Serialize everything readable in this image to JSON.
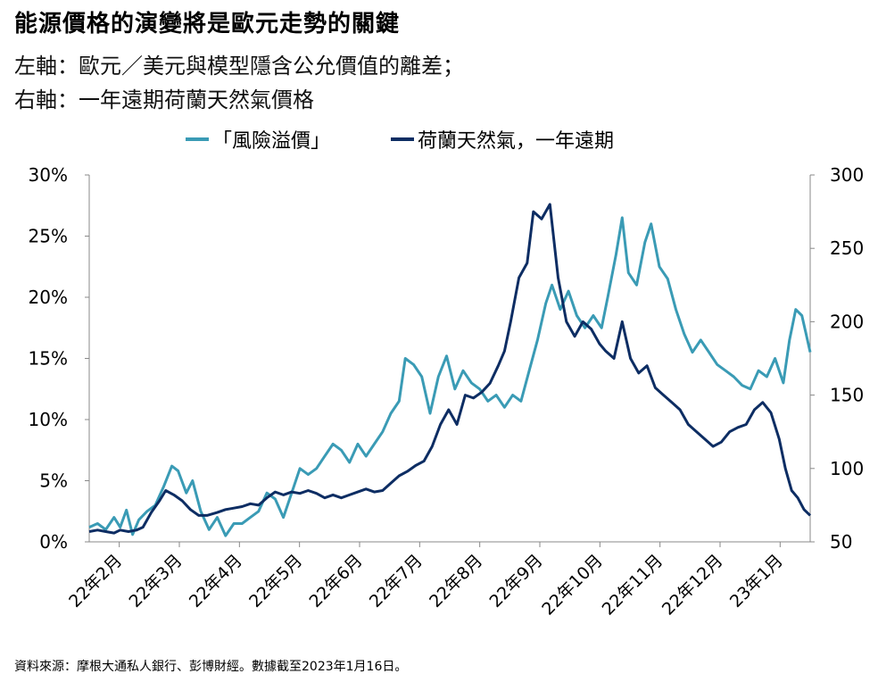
{
  "title": "能源價格的演變將是歐元走勢的關鍵",
  "subtitle_lines": [
    "左軸：歐元／美元與模型隱含公允價值的離差；",
    "右軸：一年遠期荷蘭天然氣價格"
  ],
  "source": "資料來源：摩根大通私人銀行、彭博財經。數據截至2023年1月16日。",
  "colors": {
    "premium": "#3a9bb5",
    "gas": "#0d2d63",
    "axis": "#888888"
  },
  "chart_data": {
    "type": "line",
    "x_start": "2022-02-01",
    "x_end": "2023-01-16",
    "x_ticks": [
      "22年2月",
      "22年3月",
      "22年4月",
      "22年5月",
      "22年6月",
      "22年7月",
      "22年8月",
      "22年9月",
      "22年10月",
      "22年11月",
      "22年12月",
      "23年1月"
    ],
    "y_left": {
      "min": 0,
      "max": 30,
      "ticks": [
        "0%",
        "5%",
        "10%",
        "15%",
        "20%",
        "25%",
        "30%"
      ]
    },
    "y_right": {
      "min": 50,
      "max": 300,
      "ticks": [
        "50",
        "100",
        "150",
        "200",
        "250",
        "300"
      ]
    },
    "series": [
      {
        "name": "「風險溢價」",
        "axis": "left",
        "points": [
          [
            "2022-02-01",
            1.2
          ],
          [
            "2022-02-05",
            1.5
          ],
          [
            "2022-02-09",
            1.0
          ],
          [
            "2022-02-13",
            2.0
          ],
          [
            "2022-02-16",
            1.2
          ],
          [
            "2022-02-19",
            2.6
          ],
          [
            "2022-02-22",
            0.6
          ],
          [
            "2022-02-25",
            1.8
          ],
          [
            "2022-03-01",
            2.5
          ],
          [
            "2022-03-05",
            3.0
          ],
          [
            "2022-03-09",
            4.5
          ],
          [
            "2022-03-13",
            6.2
          ],
          [
            "2022-03-16",
            5.8
          ],
          [
            "2022-03-20",
            4.0
          ],
          [
            "2022-03-23",
            5.0
          ],
          [
            "2022-03-27",
            2.5
          ],
          [
            "2022-03-31",
            1.0
          ],
          [
            "2022-04-04",
            2.0
          ],
          [
            "2022-04-08",
            0.5
          ],
          [
            "2022-04-12",
            1.5
          ],
          [
            "2022-04-16",
            1.5
          ],
          [
            "2022-04-20",
            2.0
          ],
          [
            "2022-04-24",
            2.5
          ],
          [
            "2022-04-28",
            4.0
          ],
          [
            "2022-05-02",
            3.5
          ],
          [
            "2022-05-06",
            2.0
          ],
          [
            "2022-05-10",
            4.0
          ],
          [
            "2022-05-14",
            6.0
          ],
          [
            "2022-05-18",
            5.5
          ],
          [
            "2022-05-22",
            6.0
          ],
          [
            "2022-05-26",
            7.0
          ],
          [
            "2022-05-30",
            8.0
          ],
          [
            "2022-06-03",
            7.5
          ],
          [
            "2022-06-07",
            6.5
          ],
          [
            "2022-06-11",
            8.0
          ],
          [
            "2022-06-15",
            7.0
          ],
          [
            "2022-06-19",
            8.0
          ],
          [
            "2022-06-23",
            9.0
          ],
          [
            "2022-06-27",
            10.5
          ],
          [
            "2022-07-01",
            11.5
          ],
          [
            "2022-07-04",
            15.0
          ],
          [
            "2022-07-08",
            14.5
          ],
          [
            "2022-07-12",
            13.5
          ],
          [
            "2022-07-16",
            10.5
          ],
          [
            "2022-07-20",
            13.5
          ],
          [
            "2022-07-24",
            15.2
          ],
          [
            "2022-07-28",
            12.5
          ],
          [
            "2022-08-01",
            14.0
          ],
          [
            "2022-08-05",
            13.0
          ],
          [
            "2022-08-09",
            12.5
          ],
          [
            "2022-08-13",
            11.5
          ],
          [
            "2022-08-17",
            12.0
          ],
          [
            "2022-08-21",
            11.0
          ],
          [
            "2022-08-25",
            12.0
          ],
          [
            "2022-08-29",
            11.5
          ],
          [
            "2022-09-02",
            14.0
          ],
          [
            "2022-09-06",
            16.5
          ],
          [
            "2022-09-10",
            19.5
          ],
          [
            "2022-09-13",
            21.0
          ],
          [
            "2022-09-17",
            19.0
          ],
          [
            "2022-09-21",
            20.5
          ],
          [
            "2022-09-25",
            18.5
          ],
          [
            "2022-09-29",
            17.5
          ],
          [
            "2022-10-03",
            18.5
          ],
          [
            "2022-10-07",
            17.5
          ],
          [
            "2022-10-10",
            20.0
          ],
          [
            "2022-10-14",
            23.5
          ],
          [
            "2022-10-17",
            26.5
          ],
          [
            "2022-10-20",
            22.0
          ],
          [
            "2022-10-24",
            21.0
          ],
          [
            "2022-10-28",
            24.5
          ],
          [
            "2022-10-31",
            26.0
          ],
          [
            "2022-11-04",
            22.5
          ],
          [
            "2022-11-08",
            21.5
          ],
          [
            "2022-11-12",
            19.0
          ],
          [
            "2022-11-16",
            17.0
          ],
          [
            "2022-11-20",
            15.5
          ],
          [
            "2022-11-24",
            16.5
          ],
          [
            "2022-11-28",
            15.5
          ],
          [
            "2022-12-02",
            14.5
          ],
          [
            "2022-12-06",
            14.0
          ],
          [
            "2022-12-10",
            13.5
          ],
          [
            "2022-12-14",
            12.8
          ],
          [
            "2022-12-18",
            12.5
          ],
          [
            "2022-12-22",
            14.0
          ],
          [
            "2022-12-26",
            13.5
          ],
          [
            "2022-12-30",
            15.0
          ],
          [
            "2023-01-03",
            13.0
          ],
          [
            "2023-01-06",
            16.5
          ],
          [
            "2023-01-09",
            19.0
          ],
          [
            "2023-01-12",
            18.5
          ],
          [
            "2023-01-14",
            17.0
          ],
          [
            "2023-01-16",
            15.5
          ]
        ]
      },
      {
        "name": "荷蘭天然氣，一年遠期",
        "axis": "right",
        "points": [
          [
            "2022-02-01",
            57
          ],
          [
            "2022-02-05",
            58
          ],
          [
            "2022-02-09",
            57
          ],
          [
            "2022-02-13",
            56
          ],
          [
            "2022-02-16",
            58
          ],
          [
            "2022-02-20",
            57
          ],
          [
            "2022-02-24",
            58
          ],
          [
            "2022-02-27",
            60
          ],
          [
            "2022-03-03",
            70
          ],
          [
            "2022-03-07",
            78
          ],
          [
            "2022-03-10",
            85
          ],
          [
            "2022-03-14",
            82
          ],
          [
            "2022-03-18",
            78
          ],
          [
            "2022-03-22",
            72
          ],
          [
            "2022-03-26",
            68
          ],
          [
            "2022-03-30",
            68
          ],
          [
            "2022-04-04",
            70
          ],
          [
            "2022-04-08",
            72
          ],
          [
            "2022-04-12",
            73
          ],
          [
            "2022-04-16",
            74
          ],
          [
            "2022-04-20",
            76
          ],
          [
            "2022-04-24",
            75
          ],
          [
            "2022-04-28",
            80
          ],
          [
            "2022-05-02",
            84
          ],
          [
            "2022-05-06",
            82
          ],
          [
            "2022-05-10",
            84
          ],
          [
            "2022-05-14",
            83
          ],
          [
            "2022-05-18",
            85
          ],
          [
            "2022-05-22",
            83
          ],
          [
            "2022-05-26",
            80
          ],
          [
            "2022-05-30",
            82
          ],
          [
            "2022-06-03",
            80
          ],
          [
            "2022-06-07",
            82
          ],
          [
            "2022-06-11",
            84
          ],
          [
            "2022-06-15",
            86
          ],
          [
            "2022-06-19",
            84
          ],
          [
            "2022-06-23",
            85
          ],
          [
            "2022-06-27",
            90
          ],
          [
            "2022-07-01",
            95
          ],
          [
            "2022-07-05",
            98
          ],
          [
            "2022-07-09",
            102
          ],
          [
            "2022-07-13",
            105
          ],
          [
            "2022-07-17",
            115
          ],
          [
            "2022-07-21",
            130
          ],
          [
            "2022-07-25",
            140
          ],
          [
            "2022-07-29",
            130
          ],
          [
            "2022-08-02",
            150
          ],
          [
            "2022-08-06",
            148
          ],
          [
            "2022-08-10",
            152
          ],
          [
            "2022-08-14",
            158
          ],
          [
            "2022-08-18",
            170
          ],
          [
            "2022-08-21",
            180
          ],
          [
            "2022-08-24",
            200
          ],
          [
            "2022-08-28",
            230
          ],
          [
            "2022-09-01",
            240
          ],
          [
            "2022-09-04",
            275
          ],
          [
            "2022-09-08",
            270
          ],
          [
            "2022-09-12",
            280
          ],
          [
            "2022-09-16",
            230
          ],
          [
            "2022-09-20",
            200
          ],
          [
            "2022-09-24",
            190
          ],
          [
            "2022-09-28",
            200
          ],
          [
            "2022-10-02",
            195
          ],
          [
            "2022-10-06",
            185
          ],
          [
            "2022-10-09",
            180
          ],
          [
            "2022-10-13",
            175
          ],
          [
            "2022-10-17",
            200
          ],
          [
            "2022-10-21",
            175
          ],
          [
            "2022-10-25",
            165
          ],
          [
            "2022-10-29",
            170
          ],
          [
            "2022-11-02",
            155
          ],
          [
            "2022-11-06",
            150
          ],
          [
            "2022-11-10",
            145
          ],
          [
            "2022-11-14",
            140
          ],
          [
            "2022-11-18",
            130
          ],
          [
            "2022-11-22",
            125
          ],
          [
            "2022-11-26",
            120
          ],
          [
            "2022-11-30",
            115
          ],
          [
            "2022-12-04",
            118
          ],
          [
            "2022-12-08",
            125
          ],
          [
            "2022-12-12",
            128
          ],
          [
            "2022-12-16",
            130
          ],
          [
            "2022-12-20",
            140
          ],
          [
            "2022-12-24",
            145
          ],
          [
            "2022-12-28",
            138
          ],
          [
            "2023-01-01",
            120
          ],
          [
            "2023-01-04",
            100
          ],
          [
            "2023-01-07",
            85
          ],
          [
            "2023-01-10",
            80
          ],
          [
            "2023-01-13",
            72
          ],
          [
            "2023-01-16",
            68
          ]
        ]
      }
    ],
    "grid": false,
    "legend": "top-center"
  }
}
